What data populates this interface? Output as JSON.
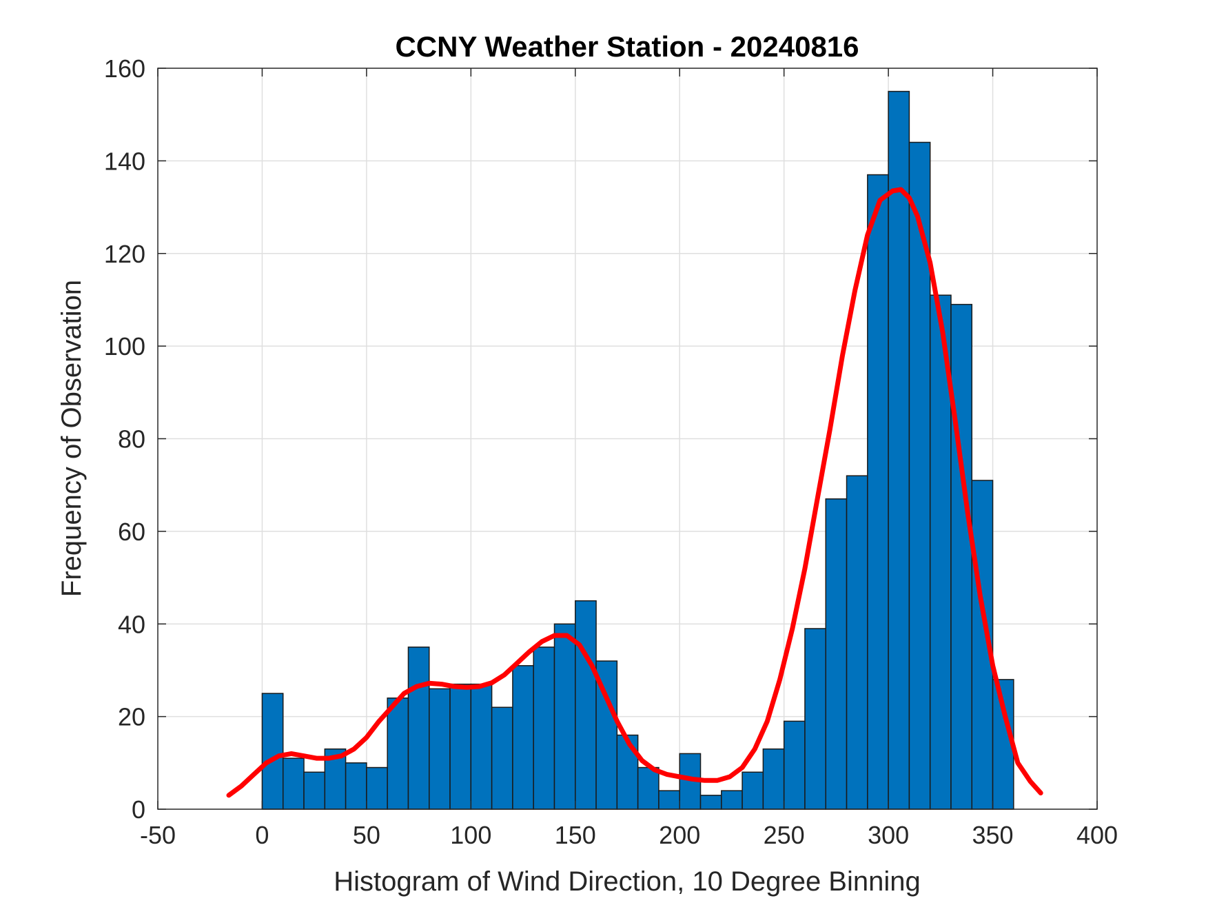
{
  "colors": {
    "bar_fill": "#0072BD",
    "fit_line": "#FF0000"
  },
  "chart_data": {
    "type": "bar",
    "title": "CCNY Weather Station - 20240816",
    "xlabel": "Histogram of Wind Direction, 10 Degree Binning",
    "ylabel": "Frequency of Observation",
    "xlim": [
      -50,
      400
    ],
    "ylim": [
      0,
      160
    ],
    "xticks": [
      -50,
      0,
      50,
      100,
      150,
      200,
      250,
      300,
      350,
      400
    ],
    "yticks": [
      0,
      20,
      40,
      60,
      80,
      100,
      120,
      140,
      160
    ],
    "grid": true,
    "bin_width": 10,
    "bins": [
      {
        "start": 0,
        "value": 25
      },
      {
        "start": 10,
        "value": 11
      },
      {
        "start": 20,
        "value": 8
      },
      {
        "start": 30,
        "value": 13
      },
      {
        "start": 40,
        "value": 10
      },
      {
        "start": 50,
        "value": 9
      },
      {
        "start": 60,
        "value": 24
      },
      {
        "start": 70,
        "value": 35
      },
      {
        "start": 80,
        "value": 26
      },
      {
        "start": 90,
        "value": 27
      },
      {
        "start": 100,
        "value": 27
      },
      {
        "start": 110,
        "value": 22
      },
      {
        "start": 120,
        "value": 31
      },
      {
        "start": 130,
        "value": 35
      },
      {
        "start": 140,
        "value": 40
      },
      {
        "start": 150,
        "value": 45
      },
      {
        "start": 160,
        "value": 32
      },
      {
        "start": 170,
        "value": 16
      },
      {
        "start": 180,
        "value": 9
      },
      {
        "start": 190,
        "value": 4
      },
      {
        "start": 200,
        "value": 12
      },
      {
        "start": 210,
        "value": 3
      },
      {
        "start": 220,
        "value": 4
      },
      {
        "start": 230,
        "value": 8
      },
      {
        "start": 240,
        "value": 13
      },
      {
        "start": 250,
        "value": 19
      },
      {
        "start": 260,
        "value": 39
      },
      {
        "start": 270,
        "value": 67
      },
      {
        "start": 280,
        "value": 72
      },
      {
        "start": 290,
        "value": 137
      },
      {
        "start": 300,
        "value": 155
      },
      {
        "start": 310,
        "value": 144
      },
      {
        "start": 320,
        "value": 111
      },
      {
        "start": 330,
        "value": 109
      },
      {
        "start": 340,
        "value": 71
      },
      {
        "start": 350,
        "value": 28
      }
    ],
    "fit_curve": {
      "name": "density fit",
      "x": [
        -16,
        -10,
        -4,
        2,
        8,
        14,
        20,
        26,
        32,
        38,
        44,
        50,
        56,
        62,
        68,
        74,
        80,
        86,
        92,
        98,
        104,
        110,
        116,
        122,
        128,
        134,
        140,
        146,
        152,
        158,
        164,
        170,
        176,
        182,
        188,
        194,
        200,
        206,
        212,
        218,
        224,
        230,
        236,
        242,
        248,
        254,
        260,
        266,
        272,
        278,
        284,
        290,
        296,
        302,
        306,
        310,
        314,
        320,
        326,
        332,
        338,
        344,
        350,
        356,
        362,
        368,
        373
      ],
      "y": [
        3,
        5,
        7.5,
        10,
        11.5,
        12,
        11.5,
        11,
        11,
        11.5,
        13,
        15.5,
        19,
        22,
        25,
        26.5,
        27.2,
        27,
        26.5,
        26.3,
        26.5,
        27.3,
        29,
        31.5,
        34,
        36.2,
        37.5,
        37.5,
        35.5,
        31,
        25,
        19,
        14,
        10.5,
        8.5,
        7.5,
        7,
        6.5,
        6.2,
        6.2,
        7,
        9,
        13,
        19,
        28,
        39,
        52,
        67,
        82,
        98,
        112,
        124,
        131.5,
        133.5,
        133.8,
        132,
        128,
        118,
        103,
        84,
        64,
        46,
        31,
        20,
        10,
        6,
        3.5
      ]
    }
  }
}
